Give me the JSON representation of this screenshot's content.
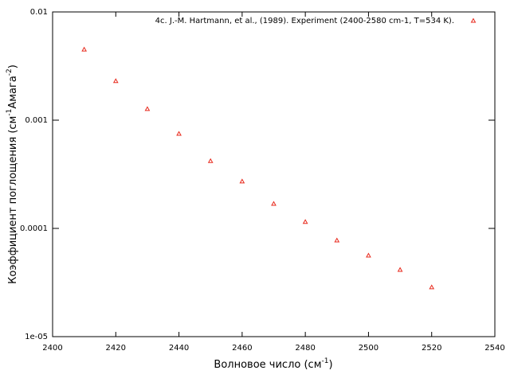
{
  "chart_data": {
    "type": "scatter",
    "x_label": [
      "Волновое число (см",
      "-1",
      ")"
    ],
    "y_label": [
      "Коэффициент поглощения (см",
      "-1",
      "Амага",
      "-2",
      ")"
    ],
    "x": [
      2410,
      2420,
      2430,
      2440,
      2450,
      2460,
      2470,
      2480,
      2490,
      2500,
      2510,
      2520
    ],
    "series": [
      {
        "name": "4c. J.-M. Hartmann, et al., (1989). Experiment (2400-2580 cm-1, T=534 K).",
        "color": "#e8291c",
        "values": [
          0.0045,
          0.0023,
          0.00127,
          0.00075,
          0.00042,
          0.000272,
          0.000169,
          0.000115,
          7.76e-05,
          5.62e-05,
          4.15e-05,
          2.86e-05
        ]
      }
    ],
    "xlim": [
      2400,
      2540
    ],
    "xticks": [
      2400,
      2420,
      2440,
      2460,
      2480,
      2500,
      2520,
      2540
    ],
    "ylim": [
      1e-05,
      0.01
    ],
    "log_y": true,
    "yticks": [
      {
        "value": 1e-05,
        "label": "1e-05"
      },
      0.0001,
      0.001,
      0.01
    ],
    "legend": "top-right"
  }
}
